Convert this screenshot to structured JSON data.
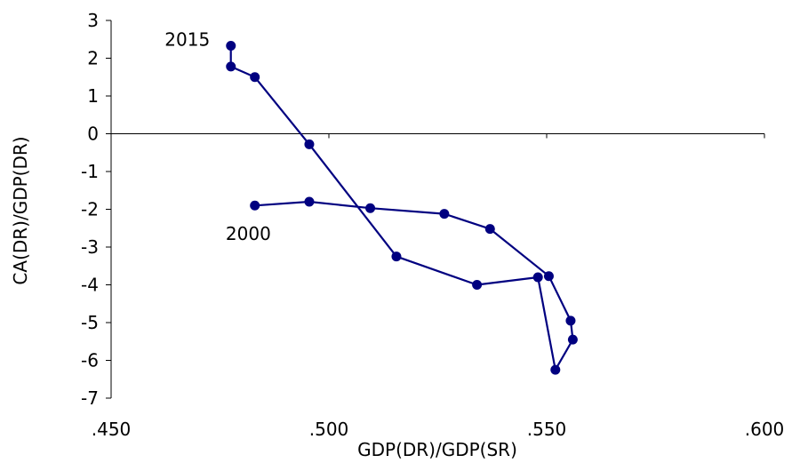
{
  "chart_data": {
    "type": "line",
    "title": "",
    "xlabel": "GDP(DR)/GDP(SR)",
    "ylabel": "CA(DR)/GDP(DR)",
    "xlim": [
      0.45,
      0.6
    ],
    "ylim": [
      -7,
      3
    ],
    "x_ticks": [
      0.45,
      0.5,
      0.55,
      0.6
    ],
    "x_tick_labels": [
      ".450",
      ".500",
      ".550",
      ".600"
    ],
    "y_ticks": [
      3,
      2,
      1,
      0,
      -1,
      -2,
      -3,
      -4,
      -5,
      -6,
      -7
    ],
    "y_tick_labels": [
      "3",
      "2",
      "1",
      "0",
      "-1",
      "-2",
      "-3",
      "-4",
      "-5",
      "-6",
      "-7"
    ],
    "grid": false,
    "legend": "none",
    "series_color": "#000080",
    "series": [
      {
        "points": [
          {
            "x": 0.483,
            "y": -1.9
          },
          {
            "x": 0.4955,
            "y": -1.8
          },
          {
            "x": 0.5095,
            "y": -1.97
          },
          {
            "x": 0.5265,
            "y": -2.12
          },
          {
            "x": 0.537,
            "y": -2.52
          },
          {
            "x": 0.5505,
            "y": -3.77
          },
          {
            "x": 0.5555,
            "y": -4.95
          },
          {
            "x": 0.556,
            "y": -5.45
          },
          {
            "x": 0.552,
            "y": -6.25
          },
          {
            "x": 0.548,
            "y": -3.8
          },
          {
            "x": 0.534,
            "y": -4.0
          },
          {
            "x": 0.5155,
            "y": -3.25
          },
          {
            "x": 0.4955,
            "y": -0.28
          },
          {
            "x": 0.483,
            "y": 1.5
          },
          {
            "x": 0.4775,
            "y": 1.78
          },
          {
            "x": 0.4775,
            "y": 2.33
          }
        ]
      }
    ],
    "annotations": [
      {
        "text": "2015",
        "x": 0.4675,
        "y": 2.5
      },
      {
        "text": "2000",
        "x": 0.4815,
        "y": -2.65
      }
    ]
  }
}
